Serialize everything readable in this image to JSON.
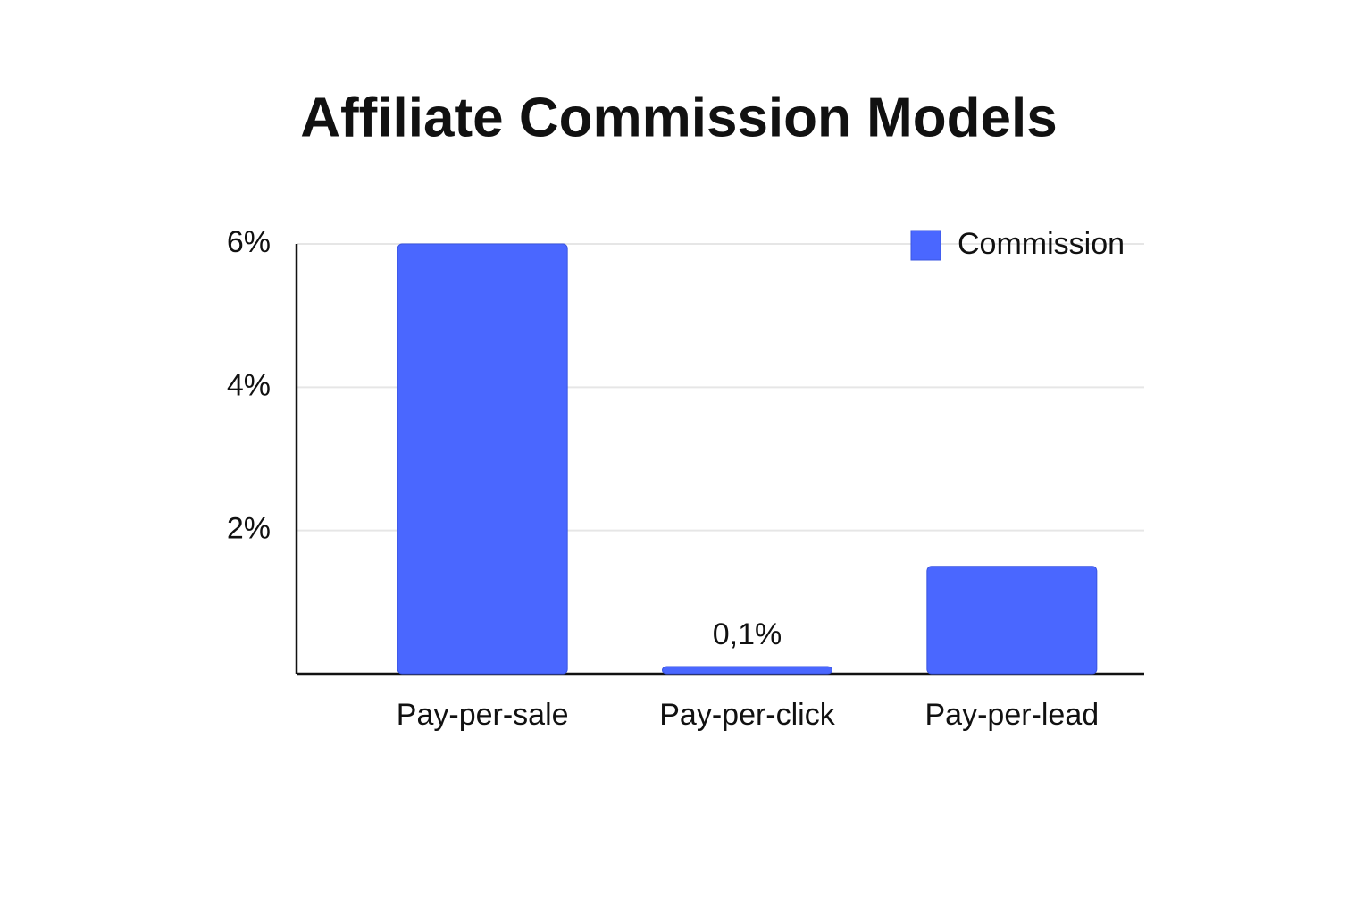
{
  "chart_data": {
    "type": "bar",
    "title": "Affiliate Commission Models",
    "categories": [
      "Pay-per-sale",
      "Pay-per-click",
      "Pay-per-lead"
    ],
    "series": [
      {
        "name": "Commission",
        "color": "#4a67ff",
        "values": [
          6,
          0.1,
          1.5
        ],
        "value_labels": [
          null,
          "0,1%",
          null
        ]
      }
    ],
    "ylim": [
      0,
      6
    ],
    "yticks": [
      {
        "value": 2,
        "label": "2%"
      },
      {
        "value": 4,
        "label": "4%"
      },
      {
        "value": 6,
        "label": "6%"
      }
    ],
    "grid": true,
    "legend": "top-right"
  }
}
